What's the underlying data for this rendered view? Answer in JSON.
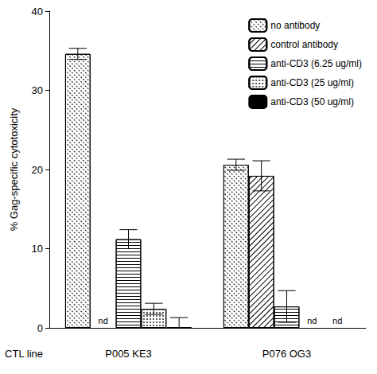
{
  "chart_data": {
    "type": "bar",
    "x_label": "CTL line",
    "y_label": "% Gag-specific cytotoxicity",
    "categories": [
      "P005 KE3",
      "P076 OG3"
    ],
    "ylim": [
      0,
      40
    ],
    "yticks": [
      0,
      10,
      20,
      30,
      40
    ],
    "grid": false,
    "legend": "top-right",
    "series": [
      {
        "name": "no antibody",
        "color": "#ffffff",
        "marker": "crosshatch",
        "values": [
          34.6,
          20.6
        ],
        "errors": [
          0.7,
          0.7
        ]
      },
      {
        "name": "control antibody",
        "color": "#ffffff",
        "marker": "diagonal",
        "values": [
          null,
          19.2
        ],
        "errors": [
          null,
          1.9
        ],
        "value_labels": [
          "nd",
          null
        ]
      },
      {
        "name": "anti-CD3 (6.25 ug/ml)",
        "color": "#ffffff",
        "marker": "horizontal",
        "values": [
          11.2,
          2.7
        ],
        "errors": [
          1.2,
          2.0
        ]
      },
      {
        "name": "anti-CD3 (25 ug/ml)",
        "color": "#ffffff",
        "marker": "dotted",
        "values": [
          2.4,
          null
        ],
        "errors": [
          0.7,
          null
        ],
        "value_labels": [
          null,
          "nd"
        ]
      },
      {
        "name": "anti-CD3 (50 ug/ml)",
        "color": "#000000",
        "marker": "solid",
        "values": [
          0.1,
          null
        ],
        "errors": [
          1.2,
          null
        ],
        "value_labels": [
          null,
          "nd"
        ]
      }
    ]
  }
}
